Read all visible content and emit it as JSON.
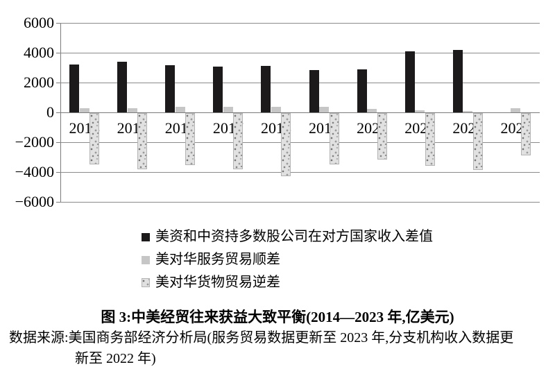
{
  "chart_data": {
    "type": "bar",
    "title": "图 3:中美经贸往来获益大致平衡(2014—2023 年,亿美元)",
    "categories": [
      "2014",
      "2015",
      "2016",
      "2017",
      "2018",
      "2019",
      "2020",
      "2021",
      "2022",
      "2023"
    ],
    "series": [
      {
        "name": "美资和中资持多数股公司在对方国家收入差值",
        "style": "solid-black",
        "color": "#1d1a1b",
        "values": [
          3200,
          3400,
          3150,
          3050,
          3130,
          2850,
          2900,
          4100,
          4200,
          null
        ]
      },
      {
        "name": "美对华服务贸易顺差",
        "style": "solid-gray",
        "color": "#c6c6c6",
        "values": [
          280,
          300,
          370,
          390,
          390,
          390,
          230,
          150,
          100,
          280
        ]
      },
      {
        "name": "美对华货物贸易逆差",
        "style": "speckled",
        "color": "#e1e1e1",
        "values": [
          -3460,
          -3750,
          -3500,
          -3760,
          -4250,
          -3430,
          -3100,
          -3520,
          -3830,
          -2850
        ]
      }
    ],
    "ylim": [
      -6000,
      6000
    ],
    "y_ticks": [
      6000,
      4000,
      2000,
      0,
      -2000,
      -4000,
      -6000
    ],
    "y_tick_labels": [
      "6000",
      "4000",
      "2000",
      "0",
      "−2000",
      "−4000",
      "−6000"
    ],
    "grid": true,
    "legend_position": "below-left",
    "colors": {
      "grid": "#8a8a8a",
      "axis": "#7a7a7a",
      "text": "#000000"
    }
  },
  "caption": {
    "text": "图 3:中美经贸往来获益大致平衡(2014—2023 年,亿美元)"
  },
  "source": {
    "line1": "数据来源:美国商务部经济分析局(服务贸易数据更新至 2023 年,分支机构收入数据更",
    "line2": "新至 2022 年)"
  }
}
